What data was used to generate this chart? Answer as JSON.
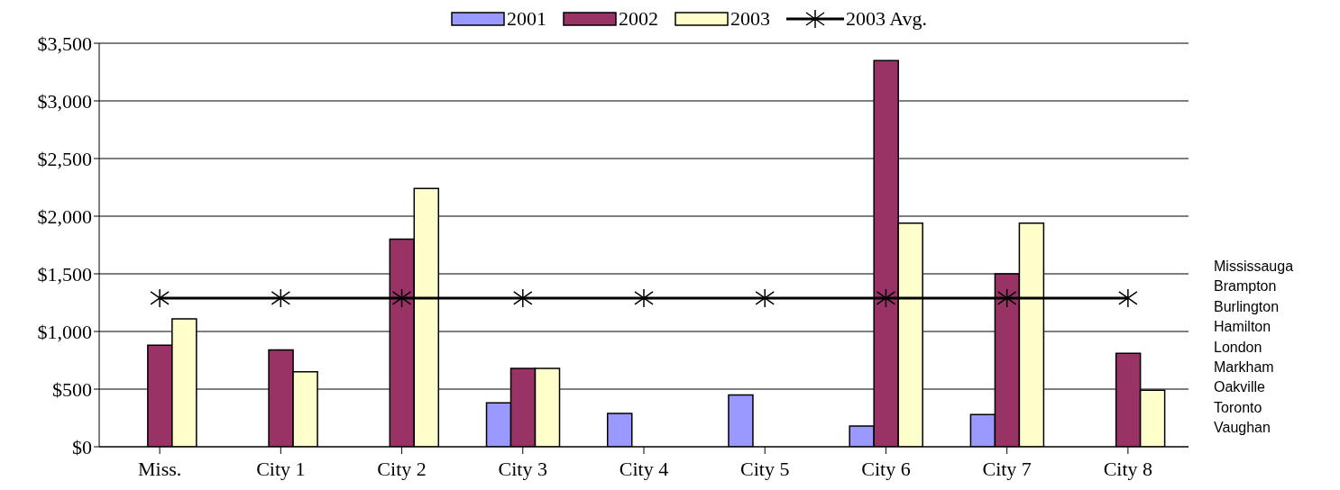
{
  "chart_data": {
    "type": "bar",
    "categories": [
      "Miss.",
      "City 1",
      "City 2",
      "City 3",
      "City 4",
      "City 5",
      "City 6",
      "City 7",
      "City 8"
    ],
    "series": [
      {
        "name": "2001",
        "color": "#9999ff",
        "values": [
          null,
          null,
          null,
          380,
          290,
          450,
          180,
          280,
          null
        ]
      },
      {
        "name": "2002",
        "color": "#993366",
        "values": [
          880,
          840,
          1800,
          680,
          null,
          null,
          3350,
          1500,
          810
        ]
      },
      {
        "name": "2003",
        "color": "#ffffcc",
        "values": [
          1110,
          650,
          2240,
          680,
          null,
          null,
          1940,
          1940,
          490
        ]
      },
      {
        "name": "2003 Avg.",
        "type": "line",
        "color": "#000000",
        "marker": "cross",
        "values": [
          1290,
          1290,
          1290,
          1290,
          1290,
          1290,
          1290,
          1290,
          1290
        ]
      }
    ],
    "ylim": [
      0,
      3500
    ],
    "yticks": [
      {
        "value": 0,
        "label": "$0"
      },
      {
        "value": 500,
        "label": "$500"
      },
      {
        "value": 1000,
        "label": "$1,000"
      },
      {
        "value": 1500,
        "label": "$1,500"
      },
      {
        "value": 2000,
        "label": "$2,000"
      },
      {
        "value": 2500,
        "label": "$2,500"
      },
      {
        "value": 3000,
        "label": "$3,000"
      },
      {
        "value": 3500,
        "label": "$3,500"
      }
    ],
    "grid": "y",
    "legend": "top",
    "annotations": [
      "Mississauga",
      "Brampton",
      "Burlington",
      "Hamilton",
      "London",
      "Markham",
      "Oakville",
      "Toronto",
      "Vaughan"
    ]
  }
}
